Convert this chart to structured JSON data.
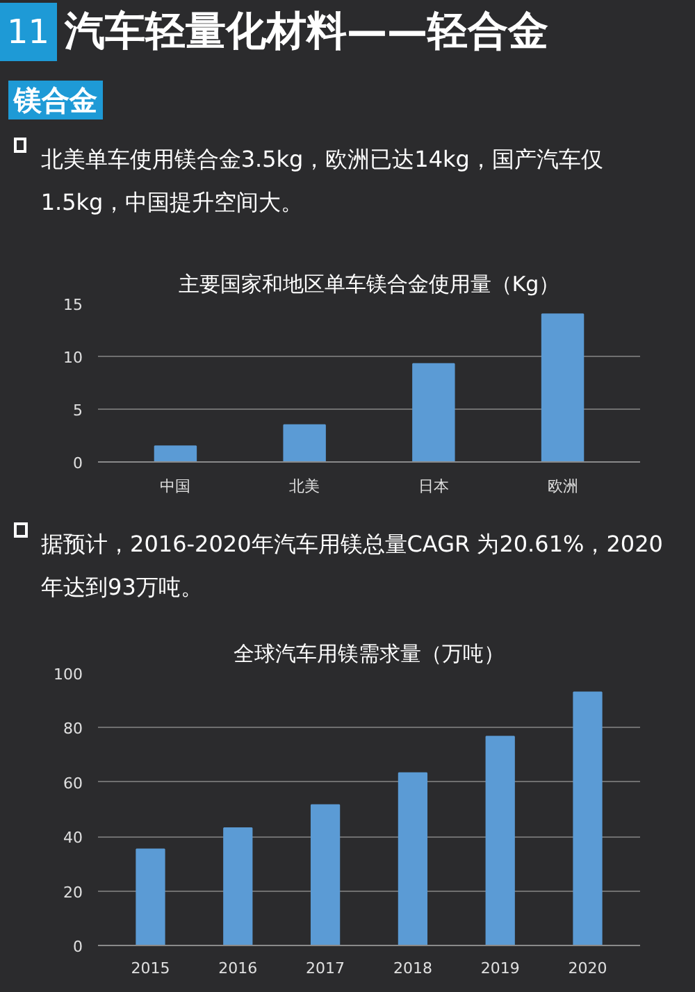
{
  "chart_data": [
    {
      "type": "bar",
      "title": "主要国家和地区单车镁合金使用量（Kg）",
      "annotations": [
        "11",
        "汽车轻量化材料——轻合金",
        "镁合金",
        "北美单车使用镁合金3.5kg，欧洲已达14kg，国产汽车仅1.5kg，中国提升空间大。"
      ],
      "categories": [
        "中国",
        "北美",
        "日本",
        "欧洲"
      ],
      "values": [
        1.5,
        3.5,
        9.3,
        14
      ],
      "color": "#5b9bd5",
      "ylim": [
        0,
        15
      ],
      "yticks": [
        0,
        5,
        10,
        15
      ],
      "grid": "y"
    },
    {
      "type": "bar",
      "title": "全球汽车用镁需求量（万吨）",
      "annotations": [
        "据预计，2016-2020年汽车用镁总量CAGR 为20.61%，2020 年达到93万吨。"
      ],
      "categories": [
        "2015",
        "2016",
        "2017",
        "2018",
        "2019",
        "2020"
      ],
      "values": [
        35.3,
        43.1,
        51.6,
        63.3,
        76.7,
        93
      ],
      "color": "#5b9bd5",
      "ylim": [
        0,
        100
      ],
      "yticks": [
        0,
        20,
        40,
        60,
        80,
        100
      ],
      "grid": "y"
    }
  ]
}
